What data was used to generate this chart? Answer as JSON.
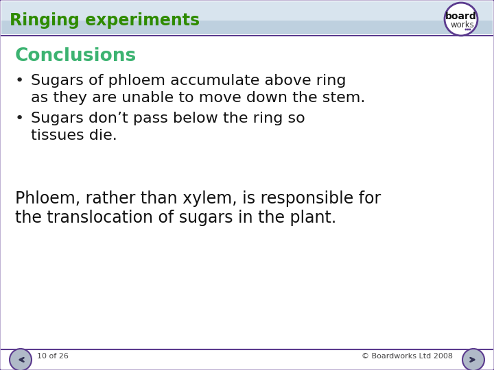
{
  "title": "Ringing experiments",
  "title_color": "#2E8B00",
  "title_bg_top": "#D8E4EE",
  "title_bg_bottom": "#C0D0E0",
  "slide_bg": "#FFFFFF",
  "body_bg": "#FFFFFF",
  "conclusions_label": "Conclusions",
  "conclusions_color": "#3CB371",
  "bullet1_line1": "Sugars of phloem accumulate above ring",
  "bullet1_line2": "as they are unable to move down the stem.",
  "bullet2_line1": "Sugars don’t pass below the ring so",
  "bullet2_line2": "tissues die.",
  "conclusion_line1": "Phloem, rather than xylem, is responsible for",
  "conclusion_line2": "the translocation of sugars in the plant.",
  "footer_left": "10 of 26",
  "footer_right": "© Boardworks Ltd 2008",
  "border_color": "#5B3A8E",
  "footer_line_color": "#5B3A8E",
  "logo_border_color": "#5B3A8E",
  "logo_text1": "board",
  "logo_text2": "works",
  "logo_dot_color": "#5B3A8E",
  "nav_bg": "#B0BAC8",
  "nav_border": "#5B3A8E"
}
